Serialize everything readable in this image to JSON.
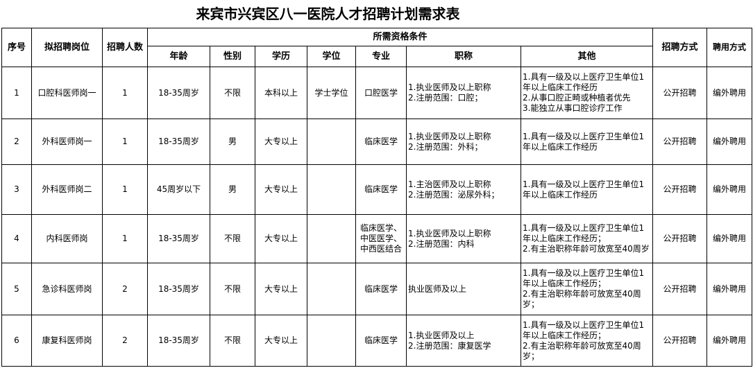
{
  "title": "来宾市兴宾区八一医院人才招聘计划需求表",
  "headers": {
    "no": "序号",
    "position": "拟招聘岗位",
    "count": "招聘人数",
    "qualifications": "所需资格条件",
    "age": "年龄",
    "gender": "性别",
    "education": "学历",
    "degree": "学位",
    "major": "专业",
    "title": "职称",
    "other": "其他",
    "method": "招聘方式",
    "employment": "聘用方式"
  },
  "rows": [
    {
      "no": "1",
      "position": "口腔科医师岗一",
      "count": "1",
      "age": "18-35周岁",
      "gender": "不限",
      "education": "本科以上",
      "degree": "学士学位",
      "major": "口腔医学",
      "title": "1.执业医师及以上职称\n2.注册范围：口腔；",
      "other": "1.具有一级及以上医疗卫生单位1年以上临床工作经历\n2.从事口腔正畸或种植者优先\n3.能独立从事口腔诊疗工作",
      "method": "公开招聘",
      "employment": "编外聘用"
    },
    {
      "no": "2",
      "position": "外科医师岗一",
      "count": "1",
      "age": "18-35周岁",
      "gender": "男",
      "education": "大专以上",
      "degree": "",
      "major": "临床医学",
      "title": "1.执业医师及以上职称\n2.注册范围：外科；",
      "other": "1.具有一级及以上医疗卫生单位1年以上临床工作经历",
      "method": "公开招聘",
      "employment": "编外聘用"
    },
    {
      "no": "3",
      "position": "外科医师岗二",
      "count": "1",
      "age": "45周岁以下",
      "gender": "男",
      "education": "大专以上",
      "degree": "",
      "major": "临床医学",
      "title": "1.主治医师及以上职称\n2.注册范围：泌尿外科；",
      "other": "1.具有一级及以上医疗卫生单位1年以上临床工作经历",
      "method": "公开招聘",
      "employment": "编外聘用"
    },
    {
      "no": "4",
      "position": "内科医师岗",
      "count": "1",
      "age": "18-35周岁",
      "gender": "不限",
      "education": "大专以上",
      "degree": "",
      "major": "临床医学、中医医学、中西医结合",
      "title": "1.执业医师及以上职称\n2.注册范围：内科",
      "other": "1.具有一级及以上医疗卫生单位1年以上临床工作经历；\n2.有主治职称年龄可放宽至40周岁",
      "method": "公开招聘",
      "employment": "编外聘用"
    },
    {
      "no": "5",
      "position": "急诊科医师岗",
      "count": "2",
      "age": "18-35周岁",
      "gender": "不限",
      "education": "大专以上",
      "degree": "",
      "major": "临床医学",
      "title": "执业医师及以上",
      "other": "1.具有一级及以上医疗卫生单位1年以上临床工作经历；\n2.有主治职称年龄可放宽至40周岁；",
      "method": "公开招聘",
      "employment": "编外聘用"
    },
    {
      "no": "6",
      "position": "康复科医师岗",
      "count": "2",
      "age": "18-35周岁",
      "gender": "不限",
      "education": "大专以上",
      "degree": "",
      "major": "临床医学",
      "title": "1.执业医师及以上\n2.注册范围：康复医学",
      "other": "1.具有一级及以上医疗卫生单位1年以上临床工作经历；\n2.有主治职称年龄可放宽至40周岁；",
      "method": "公开招聘",
      "employment": "编外聘用"
    }
  ]
}
